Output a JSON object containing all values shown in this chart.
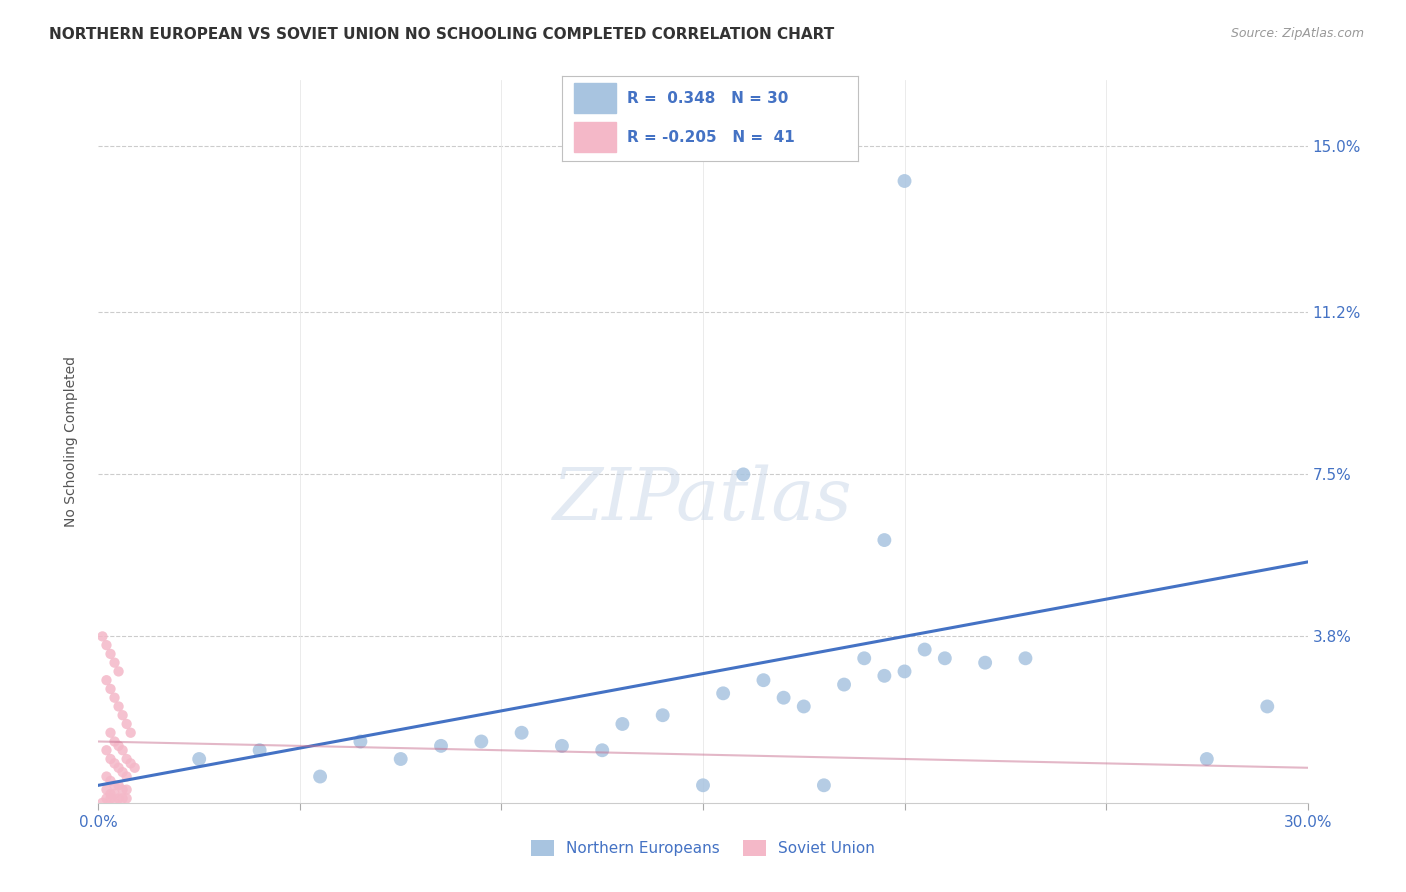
{
  "title": "NORTHERN EUROPEAN VS SOVIET UNION NO SCHOOLING COMPLETED CORRELATION CHART",
  "source": "Source: ZipAtlas.com",
  "ylabel": "No Schooling Completed",
  "watermark": "ZIPatlas",
  "legend_label_blue": "Northern Europeans",
  "legend_label_pink": "Soviet Union",
  "xlim": [
    0.0,
    0.3
  ],
  "ylim": [
    0.0,
    0.165
  ],
  "blue_color": "#a8c4e0",
  "pink_color": "#f4b8c8",
  "line_blue_color": "#4472c4",
  "line_pink_color": "#c87090",
  "background_color": "#ffffff",
  "grid_color": "#cccccc",
  "dot_size_blue": 100,
  "dot_size_pink": 55,
  "blue_line_x0": 0.0,
  "blue_line_y0": 0.004,
  "blue_line_x1": 0.3,
  "blue_line_y1": 0.055,
  "pink_line_x0": 0.0,
  "pink_line_y0": 0.014,
  "pink_line_x1": 0.3,
  "pink_line_y1": 0.008,
  "ne_points": [
    [
      0.025,
      0.01
    ],
    [
      0.04,
      0.012
    ],
    [
      0.055,
      0.006
    ],
    [
      0.065,
      0.014
    ],
    [
      0.075,
      0.01
    ],
    [
      0.085,
      0.013
    ],
    [
      0.095,
      0.014
    ],
    [
      0.105,
      0.016
    ],
    [
      0.115,
      0.013
    ],
    [
      0.125,
      0.012
    ],
    [
      0.13,
      0.018
    ],
    [
      0.14,
      0.02
    ],
    [
      0.15,
      0.004
    ],
    [
      0.155,
      0.025
    ],
    [
      0.165,
      0.028
    ],
    [
      0.17,
      0.024
    ],
    [
      0.175,
      0.022
    ],
    [
      0.18,
      0.004
    ],
    [
      0.185,
      0.027
    ],
    [
      0.19,
      0.033
    ],
    [
      0.195,
      0.029
    ],
    [
      0.2,
      0.03
    ],
    [
      0.205,
      0.035
    ],
    [
      0.21,
      0.033
    ],
    [
      0.22,
      0.032
    ],
    [
      0.23,
      0.033
    ],
    [
      0.16,
      0.075
    ],
    [
      0.195,
      0.06
    ],
    [
      0.2,
      0.142
    ],
    [
      0.275,
      0.01
    ],
    [
      0.29,
      0.022
    ]
  ],
  "su_points": [
    [
      0.001,
      0.038
    ],
    [
      0.002,
      0.036
    ],
    [
      0.003,
      0.034
    ],
    [
      0.004,
      0.032
    ],
    [
      0.005,
      0.03
    ],
    [
      0.002,
      0.028
    ],
    [
      0.003,
      0.026
    ],
    [
      0.004,
      0.024
    ],
    [
      0.005,
      0.022
    ],
    [
      0.006,
      0.02
    ],
    [
      0.007,
      0.018
    ],
    [
      0.008,
      0.016
    ],
    [
      0.003,
      0.016
    ],
    [
      0.004,
      0.014
    ],
    [
      0.005,
      0.013
    ],
    [
      0.006,
      0.012
    ],
    [
      0.007,
      0.01
    ],
    [
      0.008,
      0.009
    ],
    [
      0.009,
      0.008
    ],
    [
      0.002,
      0.012
    ],
    [
      0.003,
      0.01
    ],
    [
      0.004,
      0.009
    ],
    [
      0.005,
      0.008
    ],
    [
      0.006,
      0.007
    ],
    [
      0.007,
      0.006
    ],
    [
      0.002,
      0.006
    ],
    [
      0.003,
      0.005
    ],
    [
      0.004,
      0.004
    ],
    [
      0.005,
      0.004
    ],
    [
      0.006,
      0.003
    ],
    [
      0.007,
      0.003
    ],
    [
      0.002,
      0.003
    ],
    [
      0.003,
      0.002
    ],
    [
      0.004,
      0.002
    ],
    [
      0.005,
      0.001
    ],
    [
      0.006,
      0.001
    ],
    [
      0.007,
      0.001
    ],
    [
      0.002,
      0.001
    ],
    [
      0.003,
      0.001
    ],
    [
      0.004,
      0.0
    ],
    [
      0.001,
      0.0
    ]
  ]
}
